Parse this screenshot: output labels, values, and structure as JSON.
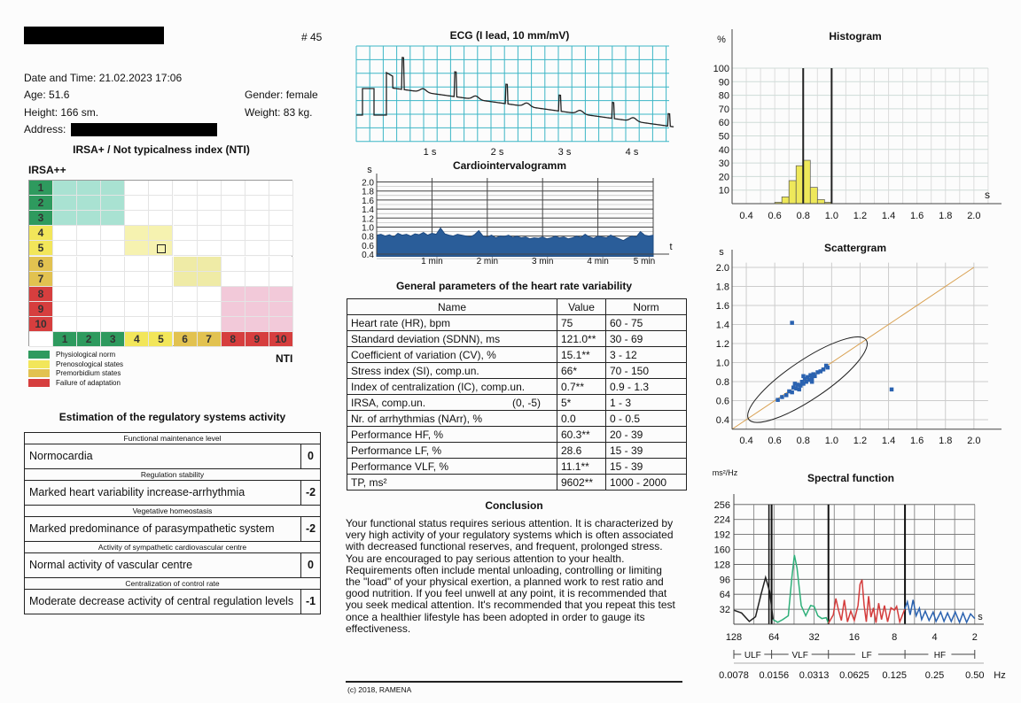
{
  "header": {
    "number": "# 45",
    "date_label": "Date and Time:",
    "date_value": "21.02.2023  17:06",
    "age": "Age: 51.6",
    "height": "Height: 166 sm.",
    "address_label": "Address:",
    "gender": "Gender: female",
    "weight": "Weight: 83 kg."
  },
  "irsa": {
    "title": "IRSA+ / Not typicalness index (NTI)",
    "y_label": "IRSA++",
    "x_label": "NTI",
    "labels": [
      "1",
      "2",
      "3",
      "4",
      "5",
      "6",
      "7",
      "8",
      "9",
      "10"
    ],
    "label_colors": [
      "#2e9a5e",
      "#2e9a5e",
      "#2e9a5e",
      "#f2e65a",
      "#f2e65a",
      "#e2c250",
      "#e2c250",
      "#d63e3e",
      "#d63e3e",
      "#d63e3e"
    ],
    "zones": [
      {
        "rows": [
          1,
          3
        ],
        "cols": [
          1,
          3
        ],
        "color": "#a9e2d2"
      },
      {
        "rows": [
          4,
          5
        ],
        "cols": [
          4,
          5
        ],
        "color": "#f6f2b0"
      },
      {
        "rows": [
          6,
          7
        ],
        "cols": [
          6,
          7
        ],
        "color": "#efeba6"
      },
      {
        "rows": [
          8,
          10
        ],
        "cols": [
          8,
          10
        ],
        "color": "#f2c9d9"
      }
    ],
    "marker": {
      "row": 5,
      "col": 5
    },
    "legend": [
      {
        "label": "Physiological norm",
        "color": "#2e9a5e"
      },
      {
        "label": "Prenosological states",
        "color": "#f2e65a"
      },
      {
        "label": "Premorbidium states",
        "color": "#e2c250"
      },
      {
        "label": "Failure of adaptation",
        "color": "#d63e3e"
      }
    ]
  },
  "estimation": {
    "title": "Estimation of the regulatory systems activity",
    "groups": [
      {
        "header": "Functional maintenance level",
        "value": "Normocardia",
        "score": "0"
      },
      {
        "header": "Regulation stability",
        "value": "Marked heart variability increase-arrhythmia",
        "score": "-2"
      },
      {
        "header": "Vegetative homeostasis",
        "value": "Marked predominance of parasympathetic system",
        "score": "-2"
      },
      {
        "header": "Activity of sympathetic cardiovascular centre",
        "value": "Normal activity of vascular centre",
        "score": "0"
      },
      {
        "header": "Centralization of control rate",
        "value": "Moderate decrease  activity of central regulation levels",
        "score": "-1"
      }
    ]
  },
  "ecg": {
    "title": "ECG (I lead, 10 mm/mV)",
    "x_ticks": [
      "1 s",
      "2 s",
      "3 s",
      "4 s"
    ],
    "r_peaks_s": [
      0.6,
      1.38,
      2.14,
      2.93,
      3.72,
      4.55
    ]
  },
  "cig": {
    "title": "Cardiointervalogramm",
    "y_unit": "s",
    "x_unit": "t",
    "y_ticks": [
      "2.0",
      "1.8",
      "1.6",
      "1.4",
      "1.2",
      "1.0",
      "0.8",
      "0.6",
      "0.4"
    ],
    "x_ticks": [
      "1 min",
      "2 min",
      "3 min",
      "4 min",
      "5 min"
    ],
    "rr_s": [
      0.82,
      0.84,
      0.8,
      0.83,
      0.78,
      0.86,
      0.82,
      0.84,
      0.8,
      0.85,
      0.83,
      0.88,
      0.82,
      0.86,
      0.84,
      0.98,
      0.85,
      0.82,
      0.8,
      0.84,
      0.82,
      0.8,
      0.78,
      0.83,
      0.92,
      0.8,
      0.78,
      0.82,
      0.76,
      0.8,
      0.79,
      0.82,
      0.77,
      0.8,
      0.76,
      0.78,
      0.74,
      0.76,
      0.75,
      0.78,
      0.74,
      0.76,
      0.8,
      0.76,
      0.78,
      0.74,
      0.76,
      0.8,
      0.77,
      0.84,
      0.78,
      0.75,
      0.8,
      0.78,
      0.76,
      0.82,
      0.78,
      0.74,
      0.7,
      0.76,
      0.8,
      0.78,
      0.9,
      0.82,
      0.8,
      0.82
    ]
  },
  "params": {
    "title": "General parameters of the heart rate variability",
    "columns": [
      "Name",
      "Value",
      "Norm"
    ],
    "rows": [
      {
        "name": "Heart rate (HR), bpm",
        "extra": "",
        "value": "75",
        "norm": "60 - 75"
      },
      {
        "name": "Standard deviation (SDNN), ms",
        "extra": "",
        "value": "121.0**",
        "norm": "30 - 69"
      },
      {
        "name": "Coefficient of variation (CV), %",
        "extra": "",
        "value": "15.1**",
        "norm": "3 - 12"
      },
      {
        "name": "Stress index (SI), comp.un.",
        "extra": "",
        "value": "66*",
        "norm": "70 - 150"
      },
      {
        "name": "Index of centralization (IC), comp.un.",
        "extra": "",
        "value": "0.7**",
        "norm": "0.9 - 1.3"
      },
      {
        "name": "IRSA, comp.un.",
        "extra": "(0, -5)",
        "value": "5*",
        "norm": "1 - 3"
      },
      {
        "name": "Nr. of arrhythmias (NArr), %",
        "extra": "",
        "value": "0.0",
        "norm": "0 - 0.5"
      },
      {
        "name": "Performance HF, %",
        "extra": "",
        "value": "60.3**",
        "norm": "20 - 39"
      },
      {
        "name": "Performance LF, %",
        "extra": "",
        "value": "28.6",
        "norm": "15 - 39"
      },
      {
        "name": "Performance VLF, %",
        "extra": "",
        "value": "11.1**",
        "norm": "15 - 39"
      },
      {
        "name": "TP, ms²",
        "extra": "",
        "value": "9602**",
        "norm": "1000 - 2000"
      }
    ]
  },
  "conclusion": {
    "title": "Conclusion",
    "text": "Your functional status requires serious attention. It is characterized by very high activity of your regulatory systems which is often associated with decreased functional reserves, and frequent, prolonged stress. You are encouraged to pay serious attention to your health. Requirements often include mental unloading, controlling or limiting the \"load\" of your physical exertion, a planned work to rest ratio and good nutrition. If you feel unwell at any point, it is recommended that you seek medical attention. It's recommended that you repeat this test once a healthier lifestyle has been adopted in order to gauge its effectiveness."
  },
  "footer": {
    "copyright": "(c) 2018, RAMENA"
  },
  "chart_data": [
    {
      "type": "bar",
      "title": "Histogram",
      "ylabel": "%",
      "xlabel": "s",
      "xlim": [
        0.3,
        2.1
      ],
      "ylim": [
        0,
        100
      ],
      "x_ticks": [
        "0.4",
        "0.6",
        "0.8",
        "1.0",
        "1.2",
        "1.4",
        "1.6",
        "1.8",
        "2.0"
      ],
      "y_ticks": [
        "100",
        "90",
        "80",
        "70",
        "60",
        "50",
        "40",
        "30",
        "20",
        "10"
      ],
      "bin_starts": [
        0.6,
        0.65,
        0.7,
        0.75,
        0.8,
        0.85,
        0.9,
        0.95
      ],
      "bin_width": 0.05,
      "values": [
        1,
        5,
        17,
        28,
        32,
        12,
        3,
        1
      ],
      "markers": [
        0.8,
        1.0
      ],
      "bar_color": "#eee85a",
      "grid": true
    },
    {
      "type": "scatter",
      "title": "Scattergram",
      "xlabel": "s",
      "ylabel": "s",
      "xlim": [
        0.3,
        2.1
      ],
      "ylim": [
        0.3,
        2.05
      ],
      "x_ticks": [
        "0.4",
        "0.6",
        "0.8",
        "1.0",
        "1.2",
        "1.4",
        "1.6",
        "1.8",
        "2.0"
      ],
      "y_ticks": [
        "2.0",
        "1.8",
        "1.6",
        "1.4",
        "1.2",
        "1.0",
        "0.8",
        "0.6",
        "0.4"
      ],
      "points": [
        [
          0.62,
          0.61
        ],
        [
          0.65,
          0.64
        ],
        [
          0.68,
          0.66
        ],
        [
          0.7,
          0.7
        ],
        [
          0.72,
          0.69
        ],
        [
          0.73,
          0.74
        ],
        [
          0.75,
          0.73
        ],
        [
          0.76,
          0.77
        ],
        [
          0.78,
          0.76
        ],
        [
          0.79,
          0.8
        ],
        [
          0.8,
          0.78
        ],
        [
          0.81,
          0.83
        ],
        [
          0.82,
          0.8
        ],
        [
          0.83,
          0.85
        ],
        [
          0.84,
          0.82
        ],
        [
          0.85,
          0.87
        ],
        [
          0.86,
          0.84
        ],
        [
          0.87,
          0.88
        ],
        [
          0.88,
          0.86
        ],
        [
          0.9,
          0.9
        ],
        [
          0.92,
          0.91
        ],
        [
          0.94,
          0.93
        ],
        [
          0.96,
          0.97
        ],
        [
          0.97,
          0.95
        ],
        [
          0.77,
          0.72
        ],
        [
          0.74,
          0.78
        ],
        [
          0.8,
          0.86
        ],
        [
          0.86,
          0.8
        ],
        [
          0.72,
          1.42
        ],
        [
          1.42,
          0.72
        ]
      ],
      "point_color": "#2a62b0",
      "line_color": "#d9a050",
      "grid": true
    },
    {
      "type": "line",
      "title": "Spectral function",
      "ylabel": "ms²/Hz",
      "xlabel": "s",
      "ylim": [
        0,
        256
      ],
      "y_ticks": [
        "256",
        "224",
        "192",
        "160",
        "128",
        "96",
        "64",
        "32"
      ],
      "x_ticks": [
        "128",
        "64",
        "32",
        "16",
        "8",
        "4",
        "2"
      ],
      "hz_ticks": [
        "0.0078",
        "0.0156",
        "0.0313",
        "0.0625",
        "0.125",
        "0.25",
        "0.50"
      ],
      "hz_unit": "Hz",
      "bands": [
        "ULF",
        "VLF",
        "LF",
        "HF"
      ],
      "series": [
        {
          "name": "ULF",
          "color": "#222222",
          "points": [
            [
              128,
              30
            ],
            [
              112,
              24
            ],
            [
              98,
              6
            ],
            [
              88,
              16
            ],
            [
              80,
              64
            ],
            [
              74,
              100
            ],
            [
              69,
              70
            ],
            [
              65,
              10
            ]
          ]
        },
        {
          "name": "VLF",
          "color": "#2fb07a",
          "points": [
            [
              65,
              10
            ],
            [
              60,
              4
            ],
            [
              55,
              10
            ],
            [
              50,
              18
            ],
            [
              47,
              100
            ],
            [
              45,
              148
            ],
            [
              43,
              120
            ],
            [
              40,
              40
            ],
            [
              37,
              18
            ],
            [
              34,
              40
            ],
            [
              32,
              38
            ],
            [
              30,
              18
            ],
            [
              28,
              12
            ],
            [
              26,
              14
            ],
            [
              25,
              2
            ]
          ]
        },
        {
          "name": "LF",
          "color": "#d43c3c",
          "points": [
            [
              25,
              2
            ],
            [
              23,
              20
            ],
            [
              22,
              55
            ],
            [
              21,
              30
            ],
            [
              20,
              8
            ],
            [
              19,
              52
            ],
            [
              18,
              5
            ],
            [
              17,
              28
            ],
            [
              16,
              8
            ],
            [
              15,
              40
            ],
            [
              14.5,
              85
            ],
            [
              14,
              95
            ],
            [
              13.5,
              40
            ],
            [
              13,
              5
            ],
            [
              12.5,
              60
            ],
            [
              12,
              15
            ],
            [
              11.5,
              35
            ],
            [
              11,
              3
            ],
            [
              10.5,
              45
            ],
            [
              10,
              10
            ],
            [
              9.5,
              40
            ],
            [
              9,
              5
            ],
            [
              8.5,
              35
            ],
            [
              8,
              30
            ],
            [
              7.7,
              38
            ],
            [
              7.3,
              5
            ],
            [
              6.7,
              32
            ]
          ]
        },
        {
          "name": "HF",
          "color": "#2a62b0",
          "points": [
            [
              6.7,
              32
            ],
            [
              6.4,
              48
            ],
            [
              6.1,
              20
            ],
            [
              5.8,
              52
            ],
            [
              5.5,
              18
            ],
            [
              5.2,
              34
            ],
            [
              5,
              10
            ],
            [
              4.7,
              28
            ],
            [
              4.4,
              8
            ],
            [
              4.1,
              26
            ],
            [
              3.9,
              6
            ],
            [
              3.6,
              26
            ],
            [
              3.4,
              6
            ],
            [
              3.2,
              24
            ],
            [
              3,
              6
            ],
            [
              2.8,
              26
            ],
            [
              2.6,
              4
            ],
            [
              2.45,
              24
            ],
            [
              2.3,
              4
            ],
            [
              2.15,
              22
            ],
            [
              2,
              12
            ]
          ]
        }
      ]
    }
  ]
}
